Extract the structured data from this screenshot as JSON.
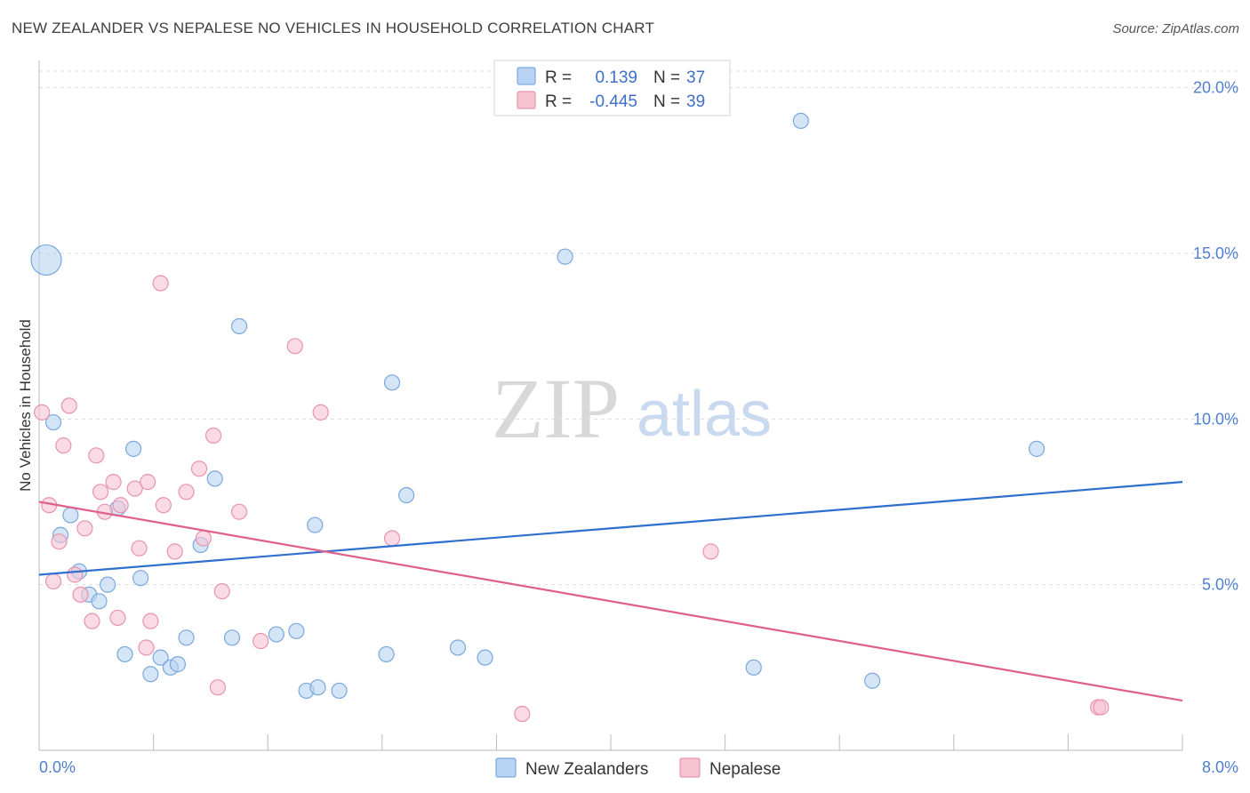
{
  "title": "NEW ZEALANDER VS NEPALESE NO VEHICLES IN HOUSEHOLD CORRELATION CHART",
  "source": "Source: ZipAtlas.com",
  "watermark": {
    "part1": "ZIP",
    "part2": "atlas"
  },
  "colors": {
    "blue_fill": "#b8d3f2",
    "blue_stroke": "#7aa7de",
    "blue_line": "#2f6fcd",
    "pink_fill": "#f7c3d3",
    "pink_stroke": "#e893ad",
    "pink_line": "#e0608a",
    "grid": "#dddddd",
    "axis": "#bbbbbb"
  },
  "legend": {
    "rows": [
      {
        "r_label": "R =",
        "r_value": "0.139",
        "n_label": "N =",
        "n_value": "37",
        "series": "blue"
      },
      {
        "r_label": "R =",
        "r_value": "-0.445",
        "n_label": "N =",
        "n_value": "39",
        "series": "pink"
      }
    ]
  },
  "chart_data": {
    "type": "scatter",
    "title": "NEW ZEALANDER VS NEPALESE NO VEHICLES IN HOUSEHOLD CORRELATION CHART",
    "xlabel": "",
    "ylabel": "No Vehicles in Household",
    "xlim": [
      0,
      8
    ],
    "ylim": [
      0,
      20.5
    ],
    "x_tick_labels": [
      {
        "value": 0,
        "label": "0.0%"
      },
      {
        "value": 8,
        "label": "8.0%"
      }
    ],
    "x_minor_ticks": [
      0.8,
      1.6,
      2.4,
      3.2,
      4.0,
      4.8,
      5.6,
      6.4,
      7.2
    ],
    "y_ticks": [
      {
        "value": 5,
        "label": "5.0%"
      },
      {
        "value": 10,
        "label": "10.0%"
      },
      {
        "value": 15,
        "label": "15.0%"
      },
      {
        "value": 20,
        "label": "20.0%"
      }
    ],
    "grid": true,
    "legend_position": "bottom",
    "series": [
      {
        "name": "New Zealanders",
        "color": "blue",
        "trend": {
          "x": [
            0,
            8
          ],
          "y": [
            5.3,
            8.1
          ]
        },
        "points": [
          {
            "x": 0.05,
            "y": 14.8,
            "big": true
          },
          {
            "x": 0.1,
            "y": 9.9
          },
          {
            "x": 0.15,
            "y": 6.5
          },
          {
            "x": 0.22,
            "y": 7.1
          },
          {
            "x": 0.28,
            "y": 5.4
          },
          {
            "x": 0.35,
            "y": 4.7
          },
          {
            "x": 0.42,
            "y": 4.5
          },
          {
            "x": 0.48,
            "y": 5.0
          },
          {
            "x": 0.55,
            "y": 7.3
          },
          {
            "x": 0.6,
            "y": 2.9
          },
          {
            "x": 0.66,
            "y": 9.1
          },
          {
            "x": 0.71,
            "y": 5.2
          },
          {
            "x": 0.78,
            "y": 2.3
          },
          {
            "x": 0.85,
            "y": 2.8
          },
          {
            "x": 0.92,
            "y": 2.5
          },
          {
            "x": 0.97,
            "y": 2.6
          },
          {
            "x": 1.03,
            "y": 3.4
          },
          {
            "x": 1.13,
            "y": 6.2
          },
          {
            "x": 1.23,
            "y": 8.2
          },
          {
            "x": 1.35,
            "y": 3.4
          },
          {
            "x": 1.4,
            "y": 12.8
          },
          {
            "x": 1.66,
            "y": 3.5
          },
          {
            "x": 1.8,
            "y": 3.6
          },
          {
            "x": 1.87,
            "y": 1.8
          },
          {
            "x": 1.93,
            "y": 6.8
          },
          {
            "x": 1.95,
            "y": 1.9
          },
          {
            "x": 2.1,
            "y": 1.8
          },
          {
            "x": 2.43,
            "y": 2.9
          },
          {
            "x": 2.47,
            "y": 11.1
          },
          {
            "x": 2.57,
            "y": 7.7
          },
          {
            "x": 2.93,
            "y": 3.1
          },
          {
            "x": 3.12,
            "y": 2.8
          },
          {
            "x": 3.68,
            "y": 14.9
          },
          {
            "x": 5.0,
            "y": 2.5
          },
          {
            "x": 5.33,
            "y": 19.0
          },
          {
            "x": 5.83,
            "y": 2.1
          },
          {
            "x": 6.98,
            "y": 9.1
          }
        ]
      },
      {
        "name": "Nepalese",
        "color": "pink",
        "trend": {
          "x": [
            0,
            8
          ],
          "y": [
            7.5,
            1.5
          ]
        },
        "points": [
          {
            "x": 0.02,
            "y": 10.2
          },
          {
            "x": 0.07,
            "y": 7.4
          },
          {
            "x": 0.1,
            "y": 5.1
          },
          {
            "x": 0.14,
            "y": 6.3
          },
          {
            "x": 0.17,
            "y": 9.2
          },
          {
            "x": 0.21,
            "y": 10.4
          },
          {
            "x": 0.25,
            "y": 5.3
          },
          {
            "x": 0.29,
            "y": 4.7
          },
          {
            "x": 0.32,
            "y": 6.7
          },
          {
            "x": 0.37,
            "y": 3.9
          },
          {
            "x": 0.4,
            "y": 8.9
          },
          {
            "x": 0.43,
            "y": 7.8
          },
          {
            "x": 0.46,
            "y": 7.2
          },
          {
            "x": 0.52,
            "y": 8.1
          },
          {
            "x": 0.55,
            "y": 4.0
          },
          {
            "x": 0.57,
            "y": 7.4
          },
          {
            "x": 0.67,
            "y": 7.9
          },
          {
            "x": 0.7,
            "y": 6.1
          },
          {
            "x": 0.75,
            "y": 3.1
          },
          {
            "x": 0.76,
            "y": 8.1
          },
          {
            "x": 0.78,
            "y": 3.9
          },
          {
            "x": 0.85,
            "y": 14.1
          },
          {
            "x": 0.87,
            "y": 7.4
          },
          {
            "x": 0.95,
            "y": 6.0
          },
          {
            "x": 1.03,
            "y": 7.8
          },
          {
            "x": 1.12,
            "y": 8.5
          },
          {
            "x": 1.15,
            "y": 6.4
          },
          {
            "x": 1.22,
            "y": 9.5
          },
          {
            "x": 1.25,
            "y": 1.9
          },
          {
            "x": 1.28,
            "y": 4.8
          },
          {
            "x": 1.4,
            "y": 7.2
          },
          {
            "x": 1.55,
            "y": 3.3
          },
          {
            "x": 1.79,
            "y": 12.2
          },
          {
            "x": 1.97,
            "y": 10.2
          },
          {
            "x": 2.47,
            "y": 6.4
          },
          {
            "x": 3.38,
            "y": 1.1
          },
          {
            "x": 4.7,
            "y": 6.0
          },
          {
            "x": 7.41,
            "y": 1.3
          },
          {
            "x": 7.43,
            "y": 1.3
          }
        ]
      }
    ]
  },
  "bottom_legend": {
    "items": [
      {
        "label": "New Zealanders",
        "series": "blue"
      },
      {
        "label": "Nepalese",
        "series": "pink"
      }
    ]
  }
}
